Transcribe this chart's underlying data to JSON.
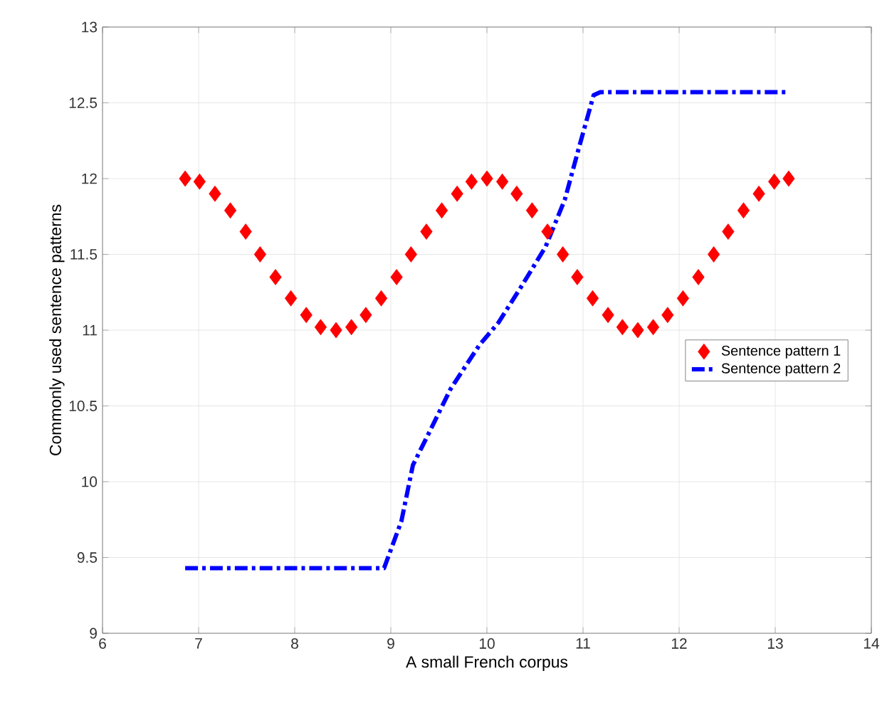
{
  "chart_data": {
    "type": "line",
    "xlabel": "A small French corpus",
    "ylabel": "Commonly used sentence patterns",
    "xlim": [
      6,
      14
    ],
    "ylim": [
      9,
      13
    ],
    "xticks": [
      6,
      7,
      8,
      9,
      10,
      11,
      12,
      13,
      14
    ],
    "yticks": [
      9,
      9.5,
      10,
      10.5,
      11,
      11.5,
      12,
      12.5,
      13
    ],
    "grid": true,
    "legend": "right",
    "series": [
      {
        "name": "Sentence pattern 1",
        "type": "scatter",
        "marker": "diamond",
        "color": "#ff0000",
        "x": [
          6.86,
          7.01,
          7.17,
          7.33,
          7.49,
          7.64,
          7.8,
          7.96,
          8.12,
          8.27,
          8.43,
          8.59,
          8.74,
          8.9,
          9.06,
          9.21,
          9.37,
          9.53,
          9.69,
          9.84,
          10,
          10.16,
          10.31,
          10.47,
          10.63,
          10.79,
          10.94,
          11.1,
          11.26,
          11.41,
          11.57,
          11.73,
          11.88,
          12.04,
          12.2,
          12.36,
          12.51,
          12.67,
          12.83,
          12.99,
          13.14
        ],
        "values": [
          12,
          11.98,
          11.9,
          11.79,
          11.65,
          11.5,
          11.35,
          11.21,
          11.1,
          11.02,
          11,
          11.02,
          11.1,
          11.21,
          11.35,
          11.5,
          11.65,
          11.79,
          11.9,
          11.98,
          12,
          11.98,
          11.9,
          11.79,
          11.65,
          11.5,
          11.35,
          11.21,
          11.1,
          11.02,
          11,
          11.02,
          11.1,
          11.21,
          11.35,
          11.5,
          11.65,
          11.79,
          11.9,
          11.98,
          12
        ]
      },
      {
        "name": "Sentence pattern 2",
        "line_style": "dashed",
        "color": "#0000ff",
        "x": [
          6.86,
          8.93,
          9.11,
          9.23,
          9.38,
          9.62,
          9.92,
          10.12,
          10.37,
          10.61,
          10.81,
          10.96,
          11.11,
          11.18,
          13.14
        ],
        "values": [
          9.43,
          9.43,
          9.74,
          10.11,
          10.3,
          10.61,
          10.9,
          11.05,
          11.3,
          11.55,
          11.86,
          12.21,
          12.55,
          12.57,
          12.57
        ]
      }
    ]
  }
}
